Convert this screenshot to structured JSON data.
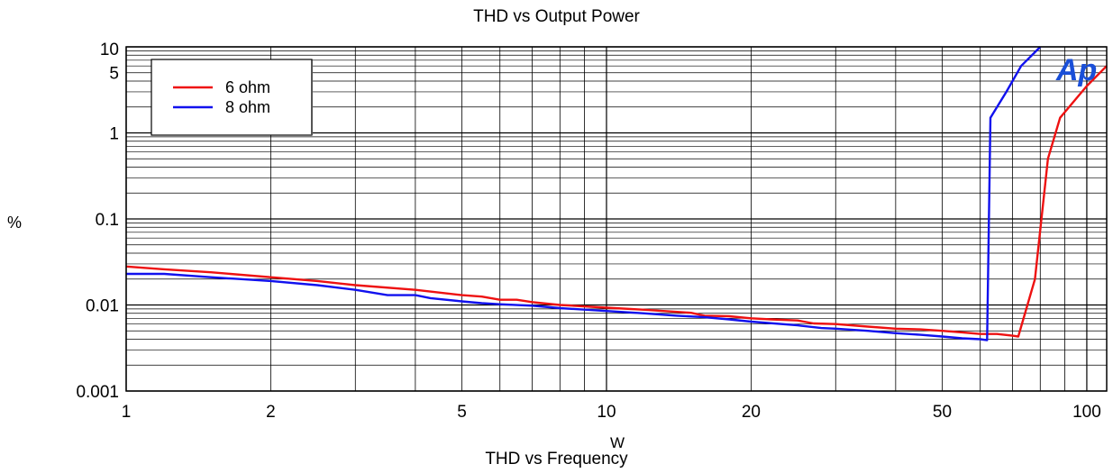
{
  "chart_data": {
    "type": "line",
    "title": "THD vs Output Power",
    "subtitle": "THD vs Frequency",
    "xlabel": "W",
    "ylabel": "%",
    "x_scale": "log",
    "y_scale": "log",
    "xlim": [
      1,
      110
    ],
    "ylim": [
      0.001,
      10
    ],
    "x_ticks": [
      1,
      2,
      5,
      10,
      20,
      50,
      100
    ],
    "x_tick_labels": [
      "1",
      "2",
      "5",
      "10",
      "20",
      "50",
      "100"
    ],
    "y_ticks": [
      0.001,
      0.01,
      0.1,
      1,
      5,
      10
    ],
    "y_tick_labels": [
      "0.001",
      "0.01",
      "0.1",
      "1",
      "5",
      "10"
    ],
    "grid": true,
    "legend_position": "top-left",
    "logo_text": "Ap",
    "series": [
      {
        "name": "6 ohm",
        "color": "#ee1111",
        "points": [
          [
            1,
            0.028
          ],
          [
            1.2,
            0.026
          ],
          [
            1.5,
            0.024
          ],
          [
            2,
            0.021
          ],
          [
            2.5,
            0.019
          ],
          [
            3,
            0.017
          ],
          [
            4,
            0.015
          ],
          [
            5,
            0.013
          ],
          [
            5.5,
            0.0125
          ],
          [
            6,
            0.0115
          ],
          [
            6.5,
            0.0115
          ],
          [
            7,
            0.0108
          ],
          [
            8,
            0.01
          ],
          [
            10,
            0.0093
          ],
          [
            12,
            0.0088
          ],
          [
            15,
            0.0081
          ],
          [
            16,
            0.0075
          ],
          [
            18,
            0.0074
          ],
          [
            20,
            0.007
          ],
          [
            22,
            0.0068
          ],
          [
            25,
            0.0066
          ],
          [
            27,
            0.0061
          ],
          [
            30,
            0.006
          ],
          [
            35,
            0.0056
          ],
          [
            40,
            0.0053
          ],
          [
            45,
            0.0052
          ],
          [
            50,
            0.005
          ],
          [
            55,
            0.0048
          ],
          [
            60,
            0.0046
          ],
          [
            65,
            0.0046
          ],
          [
            70,
            0.0044
          ],
          [
            72,
            0.0043
          ],
          [
            78,
            0.02
          ],
          [
            83,
            0.5
          ],
          [
            88,
            1.5
          ],
          [
            95,
            2.5
          ],
          [
            100,
            3.5
          ],
          [
            110,
            6
          ]
        ]
      },
      {
        "name": "8 ohm",
        "color": "#1111ee",
        "points": [
          [
            1,
            0.023
          ],
          [
            1.2,
            0.023
          ],
          [
            1.5,
            0.021
          ],
          [
            2,
            0.019
          ],
          [
            2.5,
            0.017
          ],
          [
            3,
            0.015
          ],
          [
            3.5,
            0.013
          ],
          [
            4,
            0.013
          ],
          [
            4.3,
            0.012
          ],
          [
            5,
            0.011
          ],
          [
            5.5,
            0.0105
          ],
          [
            6,
            0.0102
          ],
          [
            7,
            0.0098
          ],
          [
            8,
            0.0092
          ],
          [
            10,
            0.0085
          ],
          [
            12,
            0.008
          ],
          [
            14,
            0.0075
          ],
          [
            16,
            0.0072
          ],
          [
            18,
            0.0068
          ],
          [
            20,
            0.0064
          ],
          [
            25,
            0.0058
          ],
          [
            28,
            0.0054
          ],
          [
            30,
            0.0053
          ],
          [
            35,
            0.005
          ],
          [
            40,
            0.0047
          ],
          [
            45,
            0.0045
          ],
          [
            50,
            0.0043
          ],
          [
            55,
            0.0041
          ],
          [
            60,
            0.004
          ],
          [
            62,
            0.0039
          ],
          [
            63,
            1.5
          ],
          [
            68,
            3
          ],
          [
            73,
            6
          ],
          [
            80,
            10
          ]
        ]
      }
    ]
  }
}
